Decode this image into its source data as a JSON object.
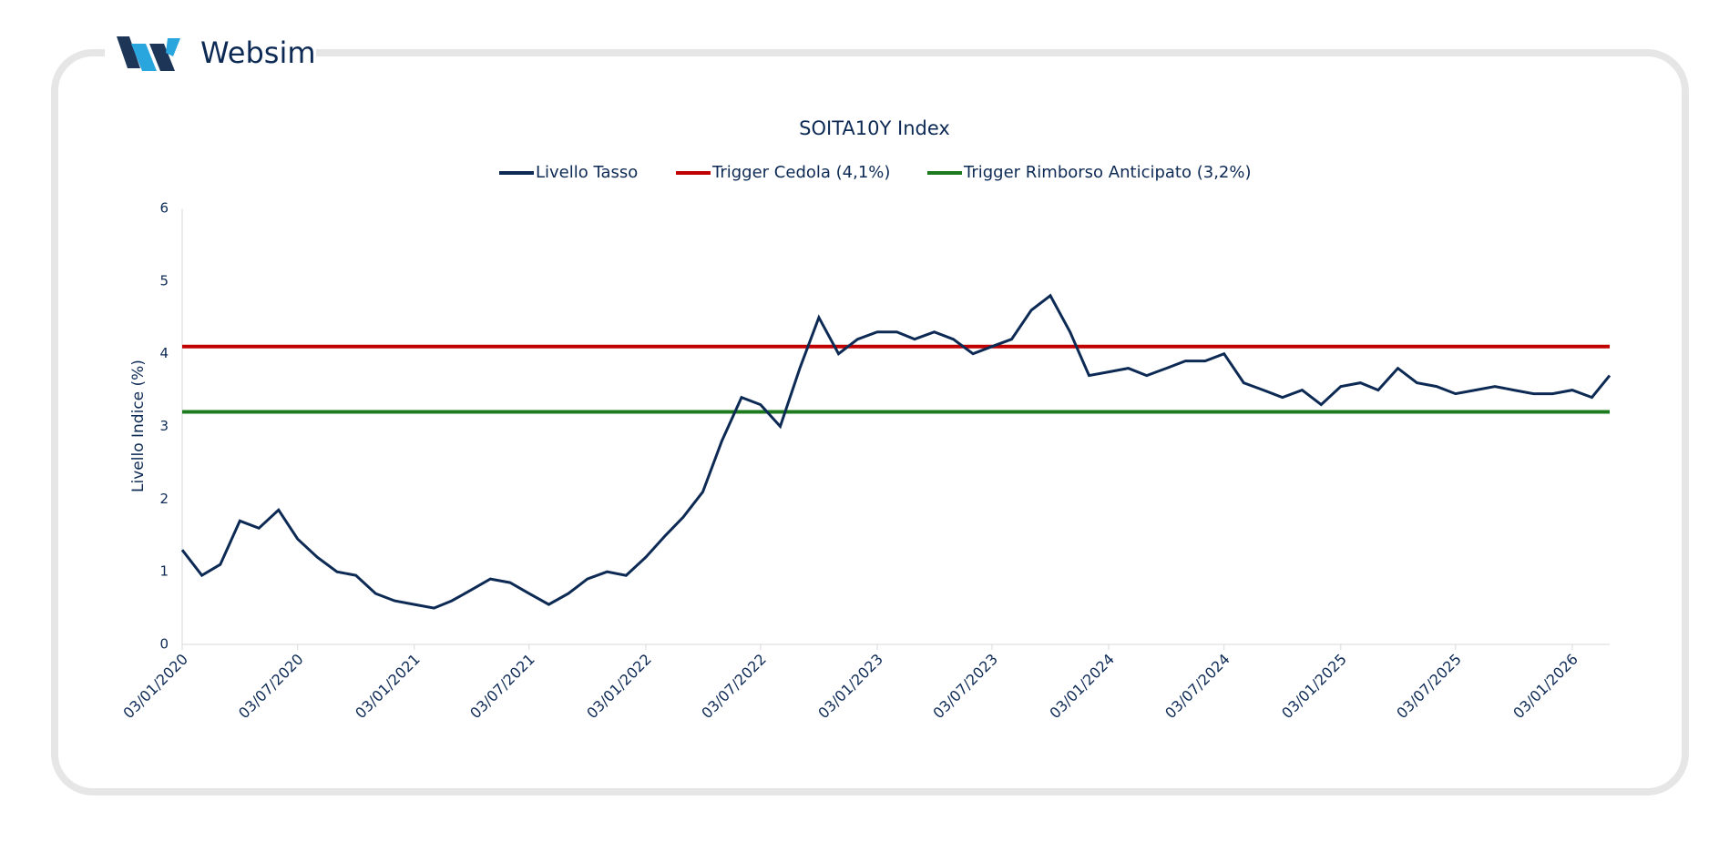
{
  "brand": "Websim",
  "chart_data": {
    "type": "line",
    "title": "SOITA10Y Index",
    "ylabel": "Livello Indice (%)",
    "x": [
      "03/01/2020",
      "03/02/2020",
      "03/03/2020",
      "03/04/2020",
      "03/05/2020",
      "03/06/2020",
      "03/07/2020",
      "03/08/2020",
      "03/09/2020",
      "03/10/2020",
      "03/11/2020",
      "03/12/2020",
      "03/01/2021",
      "03/02/2021",
      "03/03/2021",
      "03/04/2021",
      "03/05/2021",
      "03/06/2021",
      "03/07/2021",
      "03/08/2021",
      "03/09/2021",
      "03/10/2021",
      "03/11/2021",
      "03/12/2021",
      "03/01/2022",
      "03/02/2022",
      "03/03/2022",
      "03/04/2022",
      "03/05/2022",
      "03/06/2022",
      "03/07/2022",
      "03/08/2022",
      "03/09/2022",
      "03/10/2022",
      "03/11/2022",
      "03/12/2022",
      "03/01/2023",
      "03/02/2023",
      "03/03/2023",
      "03/04/2023",
      "03/05/2023",
      "03/06/2023",
      "03/07/2023",
      "03/08/2023",
      "03/09/2023",
      "03/10/2023",
      "03/11/2023",
      "03/12/2023",
      "03/01/2024",
      "03/02/2024",
      "03/03/2024",
      "03/04/2024",
      "03/05/2024",
      "03/06/2024",
      "03/07/2024",
      "03/08/2024",
      "03/09/2024",
      "03/10/2024",
      "03/11/2024",
      "03/12/2024",
      "03/01/2025",
      "03/02/2025",
      "03/03/2025",
      "03/04/2025",
      "03/05/2025",
      "03/06/2025",
      "03/07/2025",
      "03/08/2025",
      "03/09/2025",
      "03/10/2025",
      "03/11/2025",
      "03/12/2025",
      "03/01/2026",
      "03/02/2026",
      "03/03/2026"
    ],
    "series": [
      {
        "name": "Livello Tasso",
        "color": "#0d2a55",
        "values": [
          1.3,
          0.95,
          1.1,
          1.7,
          1.6,
          1.85,
          1.45,
          1.2,
          1.0,
          0.95,
          0.7,
          0.6,
          0.55,
          0.5,
          0.6,
          0.75,
          0.9,
          0.85,
          0.7,
          0.55,
          0.7,
          0.9,
          1.0,
          0.95,
          1.2,
          1.5,
          1.75,
          2.1,
          2.8,
          3.4,
          3.3,
          3.0,
          3.8,
          4.5,
          4.0,
          4.2,
          4.3,
          4.3,
          4.2,
          4.3,
          4.2,
          4.0,
          4.1,
          4.2,
          4.6,
          4.8,
          4.3,
          3.7,
          3.75,
          3.8,
          3.7,
          3.8,
          3.9,
          3.9,
          4.0,
          3.6,
          3.5,
          3.4,
          3.5,
          3.3,
          3.55,
          3.6,
          3.5,
          3.8,
          3.6,
          3.55,
          3.45,
          3.5,
          3.55,
          3.5,
          3.45,
          3.45,
          3.5,
          3.4,
          3.7
        ]
      },
      {
        "name": "Trigger Cedola (4,1%)",
        "color": "#c00000",
        "values": [
          4.1,
          4.1,
          4.1,
          4.1,
          4.1,
          4.1,
          4.1,
          4.1,
          4.1,
          4.1,
          4.1,
          4.1,
          4.1,
          4.1,
          4.1,
          4.1,
          4.1,
          4.1,
          4.1,
          4.1,
          4.1,
          4.1,
          4.1,
          4.1,
          4.1,
          4.1,
          4.1,
          4.1,
          4.1,
          4.1,
          4.1,
          4.1,
          4.1,
          4.1,
          4.1,
          4.1,
          4.1,
          4.1,
          4.1,
          4.1,
          4.1,
          4.1,
          4.1,
          4.1,
          4.1,
          4.1,
          4.1,
          4.1,
          4.1,
          4.1,
          4.1,
          4.1,
          4.1,
          4.1,
          4.1,
          4.1,
          4.1,
          4.1,
          4.1,
          4.1,
          4.1,
          4.1,
          4.1,
          4.1,
          4.1,
          4.1,
          4.1,
          4.1,
          4.1,
          4.1,
          4.1,
          4.1,
          4.1,
          4.1,
          4.1
        ]
      },
      {
        "name": "Trigger Rimborso Anticipato (3,2%)",
        "color": "#1e7a1e",
        "values": [
          3.2,
          3.2,
          3.2,
          3.2,
          3.2,
          3.2,
          3.2,
          3.2,
          3.2,
          3.2,
          3.2,
          3.2,
          3.2,
          3.2,
          3.2,
          3.2,
          3.2,
          3.2,
          3.2,
          3.2,
          3.2,
          3.2,
          3.2,
          3.2,
          3.2,
          3.2,
          3.2,
          3.2,
          3.2,
          3.2,
          3.2,
          3.2,
          3.2,
          3.2,
          3.2,
          3.2,
          3.2,
          3.2,
          3.2,
          3.2,
          3.2,
          3.2,
          3.2,
          3.2,
          3.2,
          3.2,
          3.2,
          3.2,
          3.2,
          3.2,
          3.2,
          3.2,
          3.2,
          3.2,
          3.2,
          3.2,
          3.2,
          3.2,
          3.2,
          3.2,
          3.2,
          3.2,
          3.2,
          3.2,
          3.2,
          3.2,
          3.2,
          3.2,
          3.2,
          3.2,
          3.2,
          3.2,
          3.2,
          3.2,
          3.2
        ]
      }
    ],
    "xlim": [
      "03/01/2020",
      "03/03/2026"
    ],
    "xticks": [
      "03/01/2020",
      "03/07/2020",
      "03/01/2021",
      "03/07/2021",
      "03/01/2022",
      "03/07/2022",
      "03/01/2023",
      "03/07/2023",
      "03/01/2024",
      "03/07/2024",
      "03/01/2025",
      "03/07/2025",
      "03/01/2026"
    ],
    "ylim": [
      0,
      6
    ],
    "yticks": [
      0,
      1,
      2,
      3,
      4,
      5,
      6
    ],
    "grid": false,
    "legend": "top"
  }
}
